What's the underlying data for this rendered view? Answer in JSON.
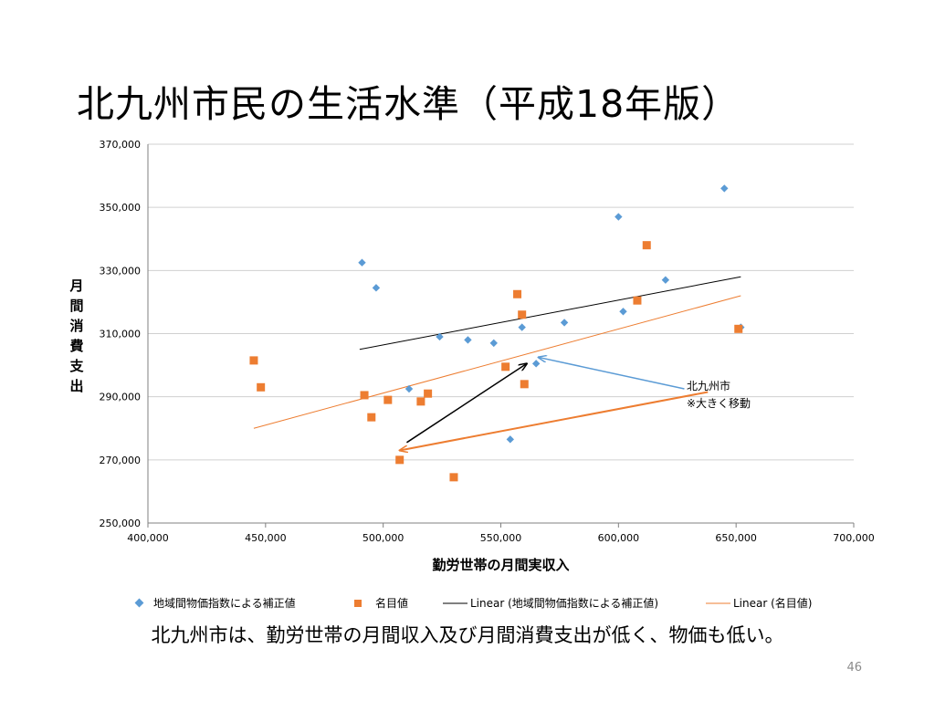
{
  "slide": {
    "title": "北九州市民の生活水準（平成18年版）",
    "caption": "北九州市は、勤労世帯の月間収入及び月間消費支出が低く、物価も低い。",
    "page_number": "46"
  },
  "colors": {
    "series_adjusted": "#5B9BD5",
    "series_nominal": "#ED7D31",
    "trend_adjusted": "#000000",
    "trend_nominal": "#ED7D31",
    "arrow_black": "#000000",
    "arrow_blue": "#5B9BD5",
    "arrow_orange": "#ED7D31",
    "gridline": "#d0d0d0"
  },
  "chart_data": {
    "type": "scatter",
    "xlabel": "勤労世帯の月間実収入",
    "ylabel": "月間消費支出",
    "xlim": [
      400000,
      700000
    ],
    "ylim": [
      250000,
      370000
    ],
    "x_ticks": [
      "400,000",
      "450,000",
      "500,000",
      "550,000",
      "600,000",
      "650,000",
      "700,000"
    ],
    "y_ticks": [
      "250,000",
      "270,000",
      "290,000",
      "310,000",
      "330,000",
      "350,000",
      "370,000"
    ],
    "grid": "horizontal",
    "legend_position": "bottom",
    "series": [
      {
        "name": "地域間物価指数による補正値",
        "marker": "diamond",
        "points": [
          [
            491000,
            332500
          ],
          [
            497000,
            324500
          ],
          [
            511000,
            292500
          ],
          [
            524000,
            309000
          ],
          [
            536000,
            308000
          ],
          [
            547000,
            307000
          ],
          [
            554000,
            276500
          ],
          [
            559000,
            312000
          ],
          [
            565000,
            300500
          ],
          [
            577000,
            313500
          ],
          [
            600000,
            347000
          ],
          [
            602000,
            317000
          ],
          [
            620000,
            327000
          ],
          [
            645000,
            356000
          ],
          [
            652000,
            312000
          ]
        ]
      },
      {
        "name": "名目値",
        "marker": "square",
        "points": [
          [
            445000,
            301500
          ],
          [
            448000,
            293000
          ],
          [
            492000,
            290500
          ],
          [
            495000,
            283500
          ],
          [
            502000,
            289000
          ],
          [
            507000,
            270000
          ],
          [
            516000,
            288500
          ],
          [
            519000,
            291000
          ],
          [
            530000,
            264500
          ],
          [
            552000,
            299500
          ],
          [
            557000,
            322500
          ],
          [
            559000,
            316000
          ],
          [
            560000,
            294000
          ],
          [
            608000,
            320500
          ],
          [
            612000,
            338000
          ],
          [
            651000,
            311500
          ]
        ]
      }
    ],
    "trendlines": [
      {
        "name": "Linear (地域間物価指数による補正値)",
        "x": [
          490000,
          652000
        ],
        "y": [
          305000,
          328000
        ]
      },
      {
        "name": "Linear (名目値)",
        "x": [
          445000,
          652000
        ],
        "y": [
          280000,
          322000
        ]
      }
    ],
    "annotations": [
      {
        "text_lines": [
          "北九州市",
          "※大きく移動"
        ]
      }
    ],
    "arrows": [
      {
        "kind": "black",
        "from": [
          510000,
          275500
        ],
        "to": [
          561000,
          300500
        ]
      },
      {
        "kind": "blue",
        "from": [
          628000,
          292500
        ],
        "to": [
          566000,
          302500
        ]
      },
      {
        "kind": "orange",
        "from": [
          638000,
          291500
        ],
        "to": [
          507000,
          273000
        ]
      }
    ]
  }
}
